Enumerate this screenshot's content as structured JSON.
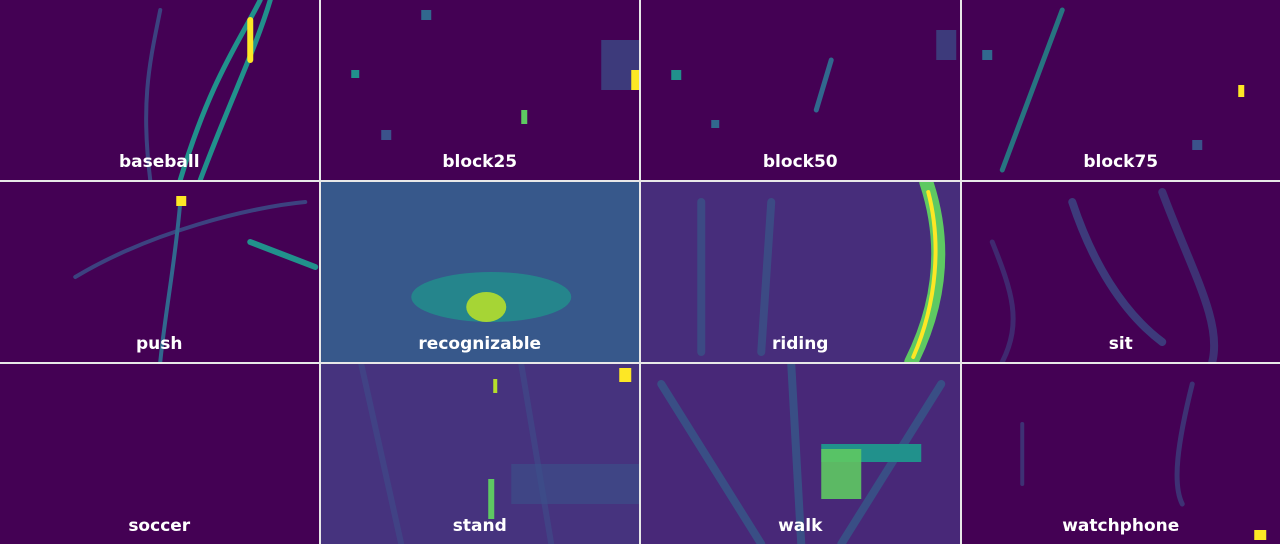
{
  "panels": [
    {
      "label": "baseball"
    },
    {
      "label": "block25"
    },
    {
      "label": "block50"
    },
    {
      "label": "block75"
    },
    {
      "label": "push"
    },
    {
      "label": "recognizable"
    },
    {
      "label": "riding"
    },
    {
      "label": "sit"
    },
    {
      "label": "soccer"
    },
    {
      "label": "stand"
    },
    {
      "label": "walk"
    },
    {
      "label": "watchphone"
    }
  ]
}
